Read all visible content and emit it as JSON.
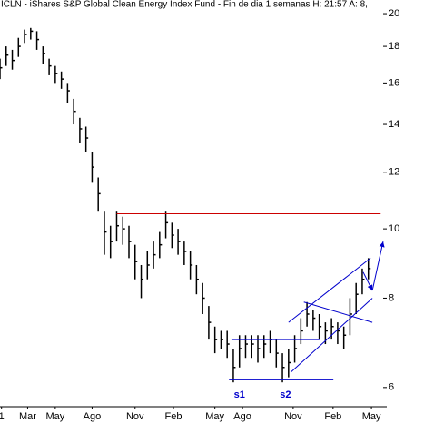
{
  "chart_data": {
    "type": "hlc",
    "title": "ICLN - iShares S&P Global Clean Energy Index Fund - Fin de dia 1 semanas  H: 21:57  A: 8,",
    "log_scale": true,
    "grid": false,
    "color": "#000000",
    "xlim": [
      0,
      126
    ],
    "ylim": [
      5.64,
      20.9
    ],
    "yticks": [
      6,
      8,
      10,
      12,
      14,
      16,
      18,
      20
    ],
    "xticks": [
      {
        "value": 0.5,
        "label": "1"
      },
      {
        "value": 9,
        "label": "Mar"
      },
      {
        "value": 18,
        "label": "May"
      },
      {
        "value": 30,
        "label": "Ago"
      },
      {
        "value": 44,
        "label": "Nov"
      },
      {
        "value": 56.5,
        "label": "Feb"
      },
      {
        "value": 70,
        "label": "May"
      },
      {
        "value": 79,
        "label": "Ago"
      },
      {
        "value": 95.5,
        "label": "Nov"
      },
      {
        "value": 108.5,
        "label": "Feb"
      },
      {
        "value": 121,
        "label": "May"
      }
    ],
    "x": [
      0,
      2,
      4,
      6,
      8,
      10,
      12,
      14,
      16,
      18,
      20,
      22,
      24,
      26,
      28,
      30,
      32,
      34,
      36,
      38,
      40,
      42,
      44,
      46,
      48,
      50,
      52,
      54,
      56,
      58,
      60,
      62,
      64,
      66,
      68,
      70,
      72,
      74,
      76,
      78,
      80,
      82,
      84,
      86,
      88,
      90,
      92,
      94,
      96,
      98,
      100,
      102,
      104,
      106,
      108,
      110,
      112,
      114,
      116,
      118,
      120
    ],
    "high": [
      17.3,
      18.0,
      17.8,
      18.5,
      19.0,
      19.1,
      18.9,
      18.0,
      17.3,
      16.9,
      16.6,
      16.0,
      15.2,
      14.3,
      13.9,
      12.8,
      11.8,
      10.6,
      10.1,
      10.6,
      10.4,
      10.1,
      9.5,
      8.9,
      9.3,
      9.6,
      9.9,
      10.6,
      10.2,
      10.0,
      9.6,
      9.3,
      8.9,
      8.4,
      7.8,
      7.3,
      7.2,
      7.2,
      6.8,
      7.1,
      7.1,
      7.1,
      7.1,
      7.1,
      7.2,
      7.0,
      6.7,
      6.8,
      7.1,
      7.5,
      7.9,
      7.7,
      7.6,
      7.4,
      7.5,
      7.4,
      7.3,
      8.0,
      8.4,
      8.8,
      9.1
    ],
    "low": [
      16.2,
      16.9,
      16.7,
      17.4,
      18.2,
      18.4,
      17.8,
      17.0,
      16.4,
      16.0,
      15.7,
      15.0,
      14.0,
      13.2,
      12.8,
      11.6,
      10.6,
      9.2,
      9.1,
      9.6,
      9.5,
      9.1,
      8.5,
      8.0,
      8.5,
      8.8,
      9.1,
      9.7,
      9.4,
      9.2,
      8.9,
      8.5,
      8.1,
      7.6,
      7.0,
      6.7,
      6.8,
      6.6,
      6.1,
      6.4,
      6.6,
      6.6,
      6.5,
      6.6,
      6.7,
      6.4,
      6.1,
      6.2,
      6.5,
      6.9,
      7.3,
      7.2,
      7.0,
      6.9,
      7.0,
      6.9,
      6.8,
      7.1,
      7.6,
      8.1,
      8.5
    ],
    "close": [
      16.8,
      17.5,
      17.2,
      18.0,
      18.7,
      18.9,
      18.4,
      17.6,
      16.9,
      16.5,
      16.2,
      15.6,
      14.6,
      13.8,
      13.4,
      12.2,
      11.2,
      9.9,
      9.6,
      10.1,
      10.0,
      9.6,
      9.0,
      8.5,
      8.9,
      9.2,
      9.5,
      10.2,
      9.8,
      9.6,
      9.3,
      8.9,
      8.5,
      8.0,
      7.4,
      7.0,
      7.0,
      6.9,
      6.4,
      6.8,
      6.9,
      6.9,
      6.8,
      6.9,
      7.0,
      6.7,
      6.4,
      6.5,
      6.8,
      7.2,
      7.6,
      7.5,
      7.3,
      7.2,
      7.3,
      7.2,
      7.1,
      7.6,
      8.1,
      8.5,
      8.8
    ],
    "lines": [
      {
        "color": "#cc0000",
        "x": [
          38,
          124
        ],
        "y": [
          10.5,
          10.5
        ]
      },
      {
        "color": "#0000cc",
        "x": [
          75.4,
          104.4
        ],
        "y": [
          7.0,
          7.0
        ]
      },
      {
        "color": "#0000cc",
        "x": [
          74.6,
          108.6
        ],
        "y": [
          6.15,
          6.15
        ]
      },
      {
        "color": "#0000cc",
        "x": [
          94.7,
          121.3
        ],
        "y": [
          6.3,
          8.0
        ]
      },
      {
        "color": "#0000cc",
        "x": [
          94,
          120.7
        ],
        "y": [
          7.4,
          9.1
        ]
      },
      {
        "color": "#0000cc",
        "x": [
          99,
          121.3
        ],
        "y": [
          7.9,
          7.4
        ]
      },
      {
        "color": "#0000cc",
        "x": [
          118.3,
          121.3
        ],
        "y": [
          8.7,
          8.2
        ],
        "arrow": true
      },
      {
        "color": "#0000cc",
        "x": [
          121.3,
          124.8
        ],
        "y": [
          8.2,
          9.6
        ],
        "arrow": true
      }
    ],
    "annotations": [
      {
        "text": "s1",
        "x": 78,
        "y": 5.86,
        "color": "#0000cc"
      },
      {
        "text": "s2",
        "x": 93,
        "y": 5.86,
        "color": "#0000cc"
      }
    ]
  }
}
